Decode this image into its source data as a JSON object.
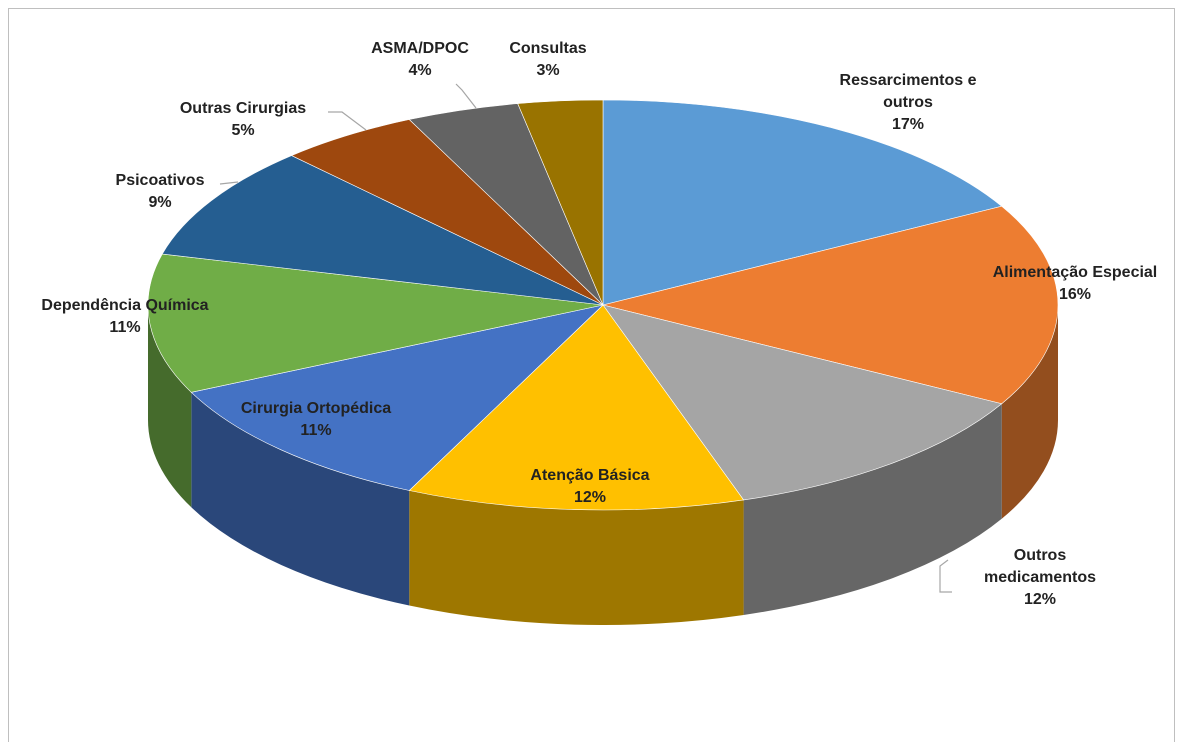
{
  "chart_data": {
    "type": "pie3d",
    "categories": [
      "Ressarcimentos e outros",
      "Alimentação Especial",
      "Outros medicamentos",
      "Atenção Básica",
      "Cirurgia Ortopédica",
      "Dependência Química",
      "Psicoativos",
      "Outras Cirurgias",
      "ASMA/DPOC",
      "Consultas"
    ],
    "values": [
      17,
      16,
      12,
      12,
      11,
      11,
      9,
      5,
      4,
      3
    ],
    "value_labels": [
      "17%",
      "16%",
      "12%",
      "12%",
      "11%",
      "11%",
      "9%",
      "5%",
      "4%",
      "3%"
    ],
    "colors": [
      "#5b9bd5",
      "#ed7d31",
      "#a5a5a5",
      "#ffc000",
      "#4472c4",
      "#70ad47",
      "#255e91",
      "#9e480e",
      "#636363",
      "#997300"
    ]
  }
}
